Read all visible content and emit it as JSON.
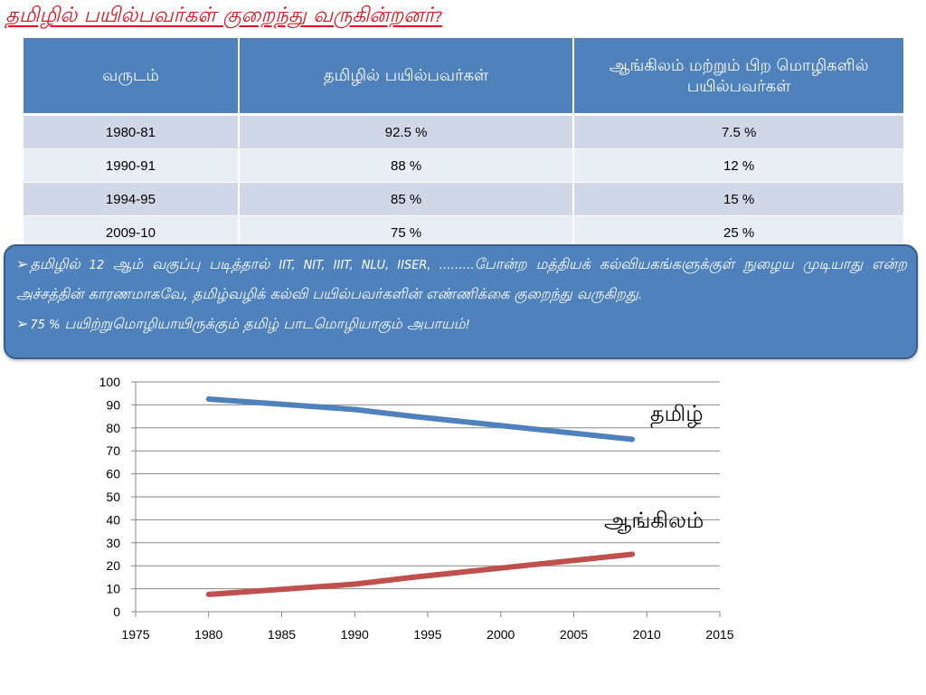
{
  "slide": {
    "title": "தமிழில் பயில்பவர்கள் குறைந்து வருகின்றனர்",
    "title_mark": "?"
  },
  "table": {
    "headers": [
      "வருடம்",
      "தமிழில் பயில்பவர்கள்",
      "ஆங்கிலம் மற்றும் பிற மொழிகளில் பயில்பவர்கள்"
    ],
    "rows": [
      [
        "1980-81",
        "92.5  %",
        "7.5 %"
      ],
      [
        "1990-91",
        "88 %",
        "12 %"
      ],
      [
        "1994-95",
        "85 %",
        "15 %"
      ],
      [
        "2009-10",
        "75 %",
        "25 %"
      ]
    ]
  },
  "callout": {
    "bullet_glyph": "➢",
    "p1_a": "தமிழில் ",
    "p1_num": "12",
    "p1_b": " ஆம் வகுப்பு படித்தால் ",
    "p1_inst": "IIT, NIT, IIIT, NLU, IISER, ………",
    "p1_c": "போன்ற மத்தியக் கல்வியகங்களுக்குள் நுழைய முடியாது என்ற அச்சத்தின் காரணமாகவே, தமிழ்வழிக் கல்வி பயில்பவர்களின் எண்ணிக்கை குறைந்து வருகிறது",
    "p1_end": ".",
    "p2_pct": "75 %",
    "p2_text": " பயிற்றுமொழியாயிருக்கும் தமிழ் பாடமொழியாகும் அபாயம்",
    "p2_end": "!"
  },
  "chart_data": {
    "type": "line",
    "title": "",
    "xlabel": "",
    "ylabel": "",
    "xlim": [
      1975,
      2015
    ],
    "ylim": [
      0,
      100
    ],
    "x_ticks": [
      "1975",
      "1980",
      "1985",
      "1990",
      "1995",
      "2000",
      "2005",
      "2010",
      "2015"
    ],
    "y_ticks": [
      "0",
      "10",
      "20",
      "30",
      "40",
      "50",
      "60",
      "70",
      "80",
      "90",
      "100"
    ],
    "grid": "horizontal",
    "series": [
      {
        "name": "தமிழ்",
        "color": "#4f81bd",
        "points": [
          [
            1980,
            92.5
          ],
          [
            1990,
            88
          ],
          [
            1994,
            85
          ],
          [
            2009,
            75
          ]
        ]
      },
      {
        "name": "ஆங்கிலம்",
        "color": "#c0504d",
        "points": [
          [
            1980,
            7.5
          ],
          [
            1990,
            12
          ],
          [
            1994,
            15
          ],
          [
            2009,
            25
          ]
        ]
      }
    ]
  }
}
